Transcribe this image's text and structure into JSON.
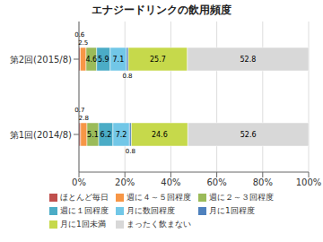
{
  "chart_data": {
    "type": "bar",
    "title": "エナジードリンクの飲用頻度",
    "orientation": "horizontal",
    "stacked": true,
    "categories": [
      "第2回(2015/8)",
      "第1回(2014/8)"
    ],
    "series": [
      {
        "name": "ほとんど毎日",
        "color": "#c0504d",
        "values": [
          0.6,
          0.7
        ]
      },
      {
        "name": "週に４～５回程度",
        "color": "#f79646",
        "values": [
          2.5,
          2.8
        ]
      },
      {
        "name": "週に２～３回程度",
        "color": "#9bbb59",
        "values": [
          4.6,
          5.1
        ]
      },
      {
        "name": "週に１回程度",
        "color": "#4bacc6",
        "values": [
          5.9,
          6.2
        ]
      },
      {
        "name": "月に数回程度",
        "color": "#72c7e7",
        "values": [
          7.1,
          7.2
        ]
      },
      {
        "name": "月に1回程度",
        "color": "#4f81bd",
        "values": [
          0.8,
          0.8
        ]
      },
      {
        "name": "月に1回未満",
        "color": "#c6d94b",
        "values": [
          25.7,
          24.6
        ]
      },
      {
        "name": "まったく飲まない",
        "color": "#d8d8d8",
        "values": [
          52.8,
          52.6
        ]
      }
    ],
    "xlim": [
      0,
      100
    ],
    "xticks": [
      {
        "value": 0,
        "label": "0%"
      },
      {
        "value": 20,
        "label": "20%"
      },
      {
        "value": 40,
        "label": "40%"
      },
      {
        "value": 60,
        "label": "60%"
      },
      {
        "value": 80,
        "label": "80%"
      },
      {
        "value": 100,
        "label": "100%"
      }
    ],
    "grid": true,
    "legend": "bottom",
    "data_labels": true
  }
}
